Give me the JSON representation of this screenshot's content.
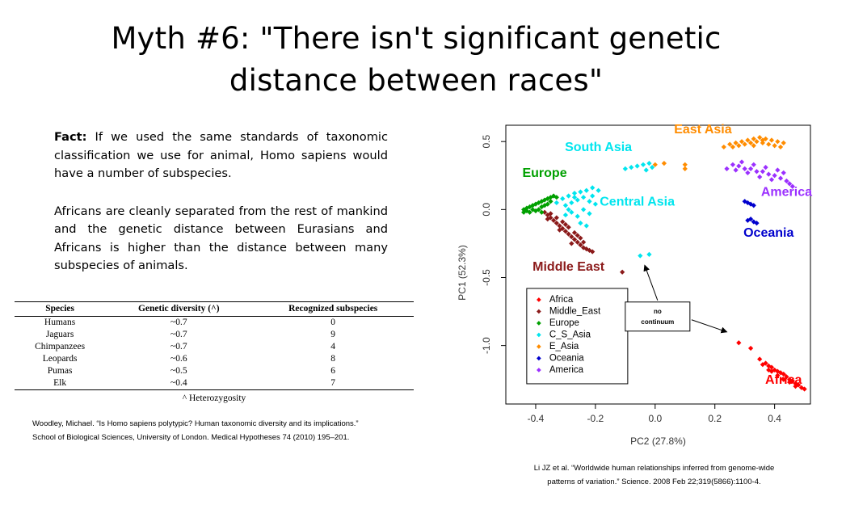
{
  "slide": {
    "title_line1": "Myth #6: \"There isn't significant genetic",
    "title_line2": "distance between races\"",
    "fact_label": "Fact:",
    "fact_text": " If we used the same standards of taxonomic classification we use for animal, Homo sapiens would have a number of subspecies.",
    "para2": "Africans are cleanly separated from the rest of mankind and the genetic distance between Eurasians and Africans is higher than the distance between many subspecies of animals.",
    "footnote": "^ Heterozygosity",
    "citation_left_1": "Woodley, Michael. “Is Homo sapiens polytypic? Human taxonomic diversity and its implications.”",
    "citation_left_2": "School of Biological Sciences, University of London. Medical Hypotheses 74 (2010) 195–201.",
    "citation_right_1": "Li JZ et al. “Worldwide human relationships inferred from genome-wide",
    "citation_right_2": "patterns of variation.” Science. 2008 Feb 22;319(5866):1100-4."
  },
  "table": {
    "headers": [
      "Species",
      "Genetic diversity (^)",
      "Recognized subspecies"
    ],
    "rows": [
      [
        "Humans",
        "~0.7",
        "0"
      ],
      [
        "Jaguars",
        "~0.7",
        "9"
      ],
      [
        "Chimpanzees",
        "~0.7",
        "4"
      ],
      [
        "Leopards",
        "~0.6",
        "8"
      ],
      [
        "Pumas",
        "~0.5",
        "6"
      ],
      [
        "Elk",
        "~0.4",
        "7"
      ]
    ]
  },
  "chart_data": {
    "type": "scatter",
    "xlabel": "PC2 (27.8%)",
    "ylabel": "PC1 (52.3%)",
    "xlim": [
      -0.5,
      0.52
    ],
    "ylim": [
      -1.43,
      0.62
    ],
    "xticks": [
      "-0.4",
      "-0.2",
      "0.0",
      "0.2",
      "0.4"
    ],
    "xtick_values": [
      -0.4,
      -0.2,
      0,
      0.2,
      0.4
    ],
    "yticks": [
      "0.5",
      "0.0",
      "-0.5",
      "-1.0"
    ],
    "ytick_values": [
      0.5,
      0,
      -0.5,
      -1.0
    ],
    "legend_position": "bottom-left",
    "series": [
      {
        "name": "Africa",
        "color": "#ff0000",
        "label": "Africa",
        "points": [
          [
            0.28,
            -0.98
          ],
          [
            0.32,
            -1.02
          ],
          [
            0.35,
            -1.1
          ],
          [
            0.37,
            -1.13
          ],
          [
            0.38,
            -1.15
          ],
          [
            0.39,
            -1.16
          ],
          [
            0.4,
            -1.18
          ],
          [
            0.41,
            -1.19
          ],
          [
            0.42,
            -1.2
          ],
          [
            0.43,
            -1.21
          ],
          [
            0.44,
            -1.23
          ],
          [
            0.45,
            -1.25
          ],
          [
            0.46,
            -1.26
          ],
          [
            0.47,
            -1.28
          ],
          [
            0.48,
            -1.29
          ],
          [
            0.49,
            -1.31
          ],
          [
            0.5,
            -1.32
          ],
          [
            0.45,
            -1.27
          ],
          [
            0.43,
            -1.25
          ],
          [
            0.41,
            -1.22
          ],
          [
            0.47,
            -1.3
          ],
          [
            0.38,
            -1.18
          ],
          [
            0.36,
            -1.14
          ],
          [
            0.39,
            -1.19
          ]
        ]
      },
      {
        "name": "Middle_East",
        "color": "#8b1a1a",
        "label": "Middle East",
        "points": [
          [
            -0.37,
            -0.02
          ],
          [
            -0.36,
            -0.04
          ],
          [
            -0.35,
            -0.06
          ],
          [
            -0.34,
            -0.08
          ],
          [
            -0.33,
            -0.1
          ],
          [
            -0.32,
            -0.12
          ],
          [
            -0.31,
            -0.14
          ],
          [
            -0.3,
            -0.16
          ],
          [
            -0.29,
            -0.18
          ],
          [
            -0.28,
            -0.2
          ],
          [
            -0.27,
            -0.22
          ],
          [
            -0.26,
            -0.24
          ],
          [
            -0.25,
            -0.26
          ],
          [
            -0.24,
            -0.28
          ],
          [
            -0.23,
            -0.29
          ],
          [
            -0.22,
            -0.3
          ],
          [
            -0.21,
            -0.31
          ],
          [
            -0.33,
            -0.06
          ],
          [
            -0.31,
            -0.09
          ],
          [
            -0.29,
            -0.13
          ],
          [
            -0.27,
            -0.17
          ],
          [
            -0.25,
            -0.21
          ],
          [
            -0.35,
            -0.03
          ],
          [
            -0.3,
            -0.11
          ],
          [
            -0.26,
            -0.19
          ],
          [
            -0.24,
            -0.24
          ],
          [
            -0.36,
            -0.07
          ],
          [
            -0.32,
            -0.15
          ],
          [
            -0.28,
            -0.25
          ],
          [
            -0.11,
            -0.46
          ]
        ]
      },
      {
        "name": "Europe",
        "color": "#00a000",
        "label": "Europe",
        "points": [
          [
            -0.44,
            0.0
          ],
          [
            -0.43,
            0.01
          ],
          [
            -0.42,
            0.02
          ],
          [
            -0.41,
            0.03
          ],
          [
            -0.4,
            0.04
          ],
          [
            -0.39,
            0.05
          ],
          [
            -0.38,
            0.06
          ],
          [
            -0.37,
            0.07
          ],
          [
            -0.36,
            0.08
          ],
          [
            -0.35,
            0.09
          ],
          [
            -0.34,
            0.1
          ],
          [
            -0.42,
            -0.02
          ],
          [
            -0.4,
            -0.01
          ],
          [
            -0.38,
            0.02
          ],
          [
            -0.36,
            0.04
          ],
          [
            -0.43,
            -0.01
          ],
          [
            -0.39,
            0.0
          ],
          [
            -0.41,
            0.0
          ],
          [
            -0.37,
            0.03
          ],
          [
            -0.35,
            0.06
          ],
          [
            -0.33,
            0.09
          ],
          [
            -0.44,
            -0.02
          ],
          [
            -0.38,
            -0.02
          ]
        ]
      },
      {
        "name": "C_S_Asia",
        "color": "#00e5ee",
        "label": "Central Asia",
        "points": [
          [
            -0.33,
            0.05
          ],
          [
            -0.31,
            0.08
          ],
          [
            -0.29,
            0.1
          ],
          [
            -0.27,
            0.12
          ],
          [
            -0.25,
            0.13
          ],
          [
            -0.23,
            0.14
          ],
          [
            -0.21,
            0.16
          ],
          [
            -0.19,
            0.14
          ],
          [
            -0.3,
            0.03
          ],
          [
            -0.28,
            0.05
          ],
          [
            -0.26,
            0.07
          ],
          [
            -0.24,
            0.09
          ],
          [
            -0.22,
            0.06
          ],
          [
            -0.2,
            0.04
          ],
          [
            -0.28,
            -0.02
          ],
          [
            -0.26,
            -0.05
          ],
          [
            -0.24,
            0.0
          ],
          [
            -0.22,
            -0.03
          ],
          [
            -0.3,
            -0.04
          ],
          [
            -0.25,
            -0.1
          ],
          [
            -0.23,
            -0.12
          ],
          [
            -0.27,
            0.09
          ],
          [
            -0.21,
            0.1
          ],
          [
            -0.29,
            0.0
          ],
          [
            -0.05,
            -0.34
          ],
          [
            -0.02,
            -0.33
          ],
          [
            -0.1,
            0.3
          ],
          [
            -0.08,
            0.31
          ],
          [
            -0.04,
            0.33
          ],
          [
            -0.02,
            0.34
          ],
          [
            -0.01,
            0.31
          ],
          [
            -0.06,
            0.32
          ],
          [
            -0.03,
            0.29
          ]
        ]
      },
      {
        "name": "E_Asia",
        "color": "#ff8c00",
        "label": "East Asia",
        "points": [
          [
            0.0,
            0.33
          ],
          [
            0.03,
            0.34
          ],
          [
            0.1,
            0.3
          ],
          [
            0.1,
            0.33
          ],
          [
            0.23,
            0.46
          ],
          [
            0.25,
            0.48
          ],
          [
            0.27,
            0.49
          ],
          [
            0.29,
            0.5
          ],
          [
            0.31,
            0.51
          ],
          [
            0.33,
            0.52
          ],
          [
            0.35,
            0.53
          ],
          [
            0.37,
            0.52
          ],
          [
            0.39,
            0.51
          ],
          [
            0.41,
            0.5
          ],
          [
            0.43,
            0.49
          ],
          [
            0.3,
            0.48
          ],
          [
            0.32,
            0.49
          ],
          [
            0.34,
            0.5
          ],
          [
            0.36,
            0.49
          ],
          [
            0.38,
            0.48
          ],
          [
            0.26,
            0.46
          ],
          [
            0.28,
            0.47
          ],
          [
            0.4,
            0.47
          ],
          [
            0.42,
            0.46
          ],
          [
            0.33,
            0.47
          ],
          [
            0.36,
            0.51
          ]
        ]
      },
      {
        "name": "Oceania",
        "color": "#0000cd",
        "label": "Oceania",
        "points": [
          [
            0.3,
            0.06
          ],
          [
            0.31,
            0.05
          ],
          [
            0.32,
            0.04
          ],
          [
            0.33,
            0.03
          ],
          [
            0.32,
            -0.07
          ],
          [
            0.33,
            -0.09
          ],
          [
            0.34,
            -0.1
          ],
          [
            0.31,
            -0.08
          ]
        ]
      },
      {
        "name": "America",
        "color": "#9b30ff",
        "label": "America",
        "points": [
          [
            0.26,
            0.33
          ],
          [
            0.28,
            0.32
          ],
          [
            0.3,
            0.3
          ],
          [
            0.32,
            0.3
          ],
          [
            0.34,
            0.28
          ],
          [
            0.36,
            0.28
          ],
          [
            0.38,
            0.26
          ],
          [
            0.4,
            0.25
          ],
          [
            0.42,
            0.23
          ],
          [
            0.44,
            0.21
          ],
          [
            0.45,
            0.19
          ],
          [
            0.46,
            0.17
          ],
          [
            0.29,
            0.35
          ],
          [
            0.33,
            0.33
          ],
          [
            0.37,
            0.31
          ],
          [
            0.41,
            0.29
          ],
          [
            0.43,
            0.27
          ],
          [
            0.39,
            0.22
          ],
          [
            0.35,
            0.24
          ],
          [
            0.31,
            0.27
          ],
          [
            0.27,
            0.29
          ],
          [
            0.24,
            0.3
          ]
        ]
      }
    ],
    "legend": [
      "Africa",
      "Middle_East",
      "Europe",
      "C_S_Asia",
      "E_Asia",
      "Oceania",
      "America"
    ],
    "annotation": {
      "line1": "no",
      "line2": "continuum"
    }
  }
}
